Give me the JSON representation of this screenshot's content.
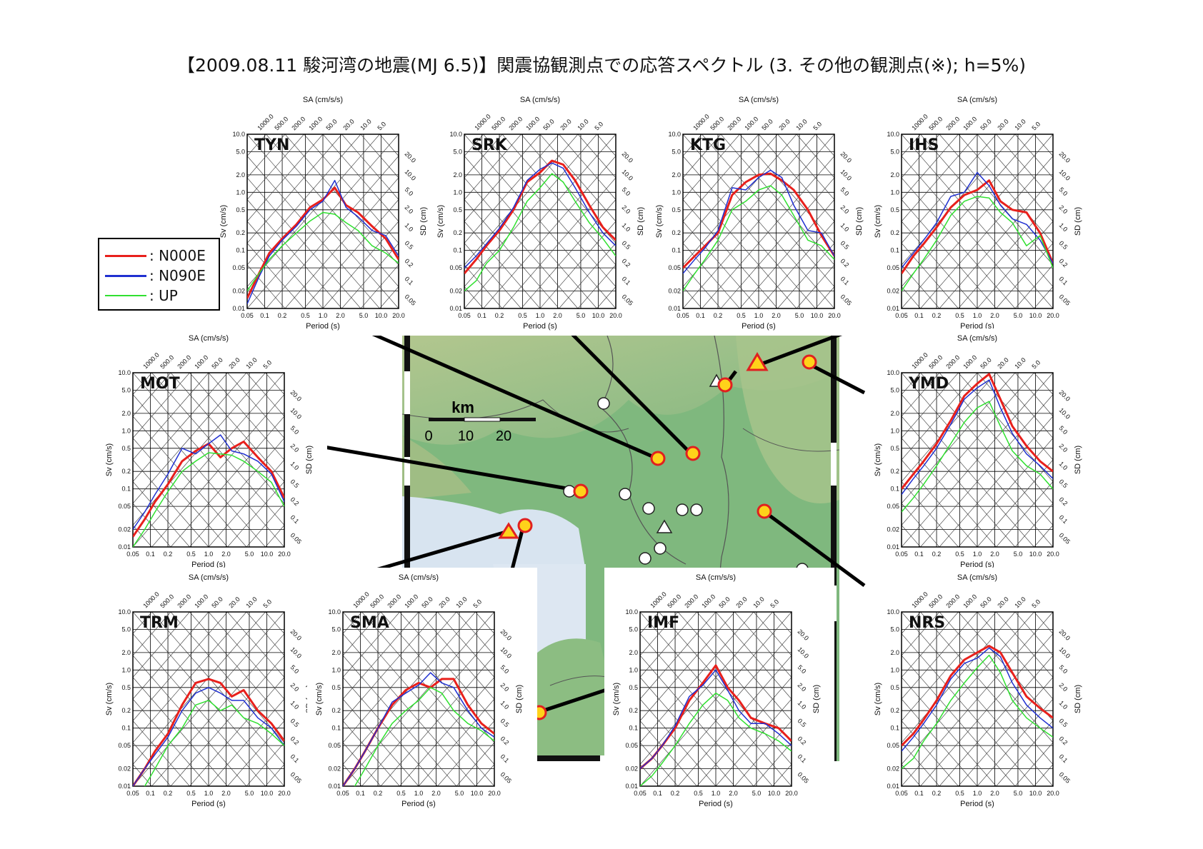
{
  "title": "【2009.08.11 駿河湾の地震(MJ 6.5)】関震協観測点での応答スペクトル (3. その他の観測点(※); h=5%)",
  "legend": [
    {
      "label": ": N000E",
      "color": "#e8201c"
    },
    {
      "label": ": N090E",
      "color": "#2030d0"
    },
    {
      "label": ": UP",
      "color": "#30e030"
    }
  ],
  "map": {
    "scale_unit": "km",
    "scale_ticks": [
      "0",
      "10",
      "20"
    ],
    "colors": {
      "land": "#7fb87e",
      "sea": "#d8e4f0",
      "marker_fill": "#ffd21a",
      "marker_edge": "#e02020"
    }
  },
  "axis_labels": {
    "sa": "SA (cm/s/s)",
    "sv": "Sv (cm/s)",
    "sd": "SD (cm)",
    "period": "Period (s)",
    "period_ticks": [
      "0.05",
      "0.1",
      "0.2",
      "0.5",
      "1.0",
      "2.0",
      "5.0",
      "10.0",
      "20.0"
    ],
    "sv_ticks": [
      "0.01",
      "0.02",
      "0.05",
      "0.1",
      "0.2",
      "0.5",
      "1.0",
      "2.0",
      "5.0",
      "10.0"
    ],
    "sa_ticks": [
      "1000.0",
      "500.0",
      "200.0",
      "100.0",
      "50.0",
      "20.0",
      "10.0",
      "5.0"
    ],
    "sd_ticks": [
      "20.0",
      "10.0",
      "5.0",
      "2.0",
      "1.0",
      "0.5",
      "0.2",
      "0.1",
      "0.05"
    ]
  },
  "chart_data": [
    {
      "type": "line",
      "station": "TYN",
      "x": [
        0.05,
        0.08,
        0.12,
        0.2,
        0.35,
        0.6,
        1.0,
        1.6,
        2.5,
        4,
        7,
        12,
        20
      ],
      "series": [
        {
          "name": "N000E",
          "values": [
            0.015,
            0.04,
            0.09,
            0.16,
            0.28,
            0.55,
            0.75,
            1.2,
            0.6,
            0.45,
            0.26,
            0.16,
            0.07
          ]
        },
        {
          "name": "N090E",
          "values": [
            0.012,
            0.035,
            0.08,
            0.15,
            0.26,
            0.5,
            0.7,
            1.6,
            0.55,
            0.38,
            0.22,
            0.18,
            0.08
          ]
        },
        {
          "name": "UP",
          "values": [
            0.02,
            0.04,
            0.07,
            0.12,
            0.2,
            0.32,
            0.45,
            0.42,
            0.3,
            0.22,
            0.12,
            0.09,
            0.06
          ]
        }
      ]
    },
    {
      "type": "line",
      "station": "SRK",
      "x": [
        0.05,
        0.08,
        0.12,
        0.2,
        0.35,
        0.6,
        1.0,
        1.6,
        2.5,
        4,
        7,
        12,
        20
      ],
      "series": [
        {
          "name": "N000E",
          "values": [
            0.04,
            0.07,
            0.12,
            0.22,
            0.5,
            1.5,
            2.2,
            3.5,
            3.0,
            1.6,
            0.6,
            0.25,
            0.15
          ]
        },
        {
          "name": "N090E",
          "values": [
            0.05,
            0.08,
            0.13,
            0.24,
            0.55,
            1.6,
            2.5,
            3.2,
            2.6,
            1.2,
            0.45,
            0.2,
            0.12
          ]
        },
        {
          "name": "UP",
          "values": [
            0.02,
            0.03,
            0.06,
            0.1,
            0.25,
            0.7,
            1.2,
            2.1,
            1.5,
            0.7,
            0.3,
            0.16,
            0.08
          ]
        }
      ]
    },
    {
      "type": "line",
      "station": "KTG",
      "x": [
        0.05,
        0.08,
        0.12,
        0.2,
        0.35,
        0.6,
        1.0,
        1.6,
        2.5,
        4,
        7,
        12,
        20
      ],
      "series": [
        {
          "name": "N000E",
          "values": [
            0.05,
            0.08,
            0.12,
            0.2,
            0.9,
            1.5,
            2.0,
            2.1,
            1.6,
            1.1,
            0.5,
            0.18,
            0.08
          ]
        },
        {
          "name": "N090E",
          "values": [
            0.04,
            0.07,
            0.11,
            0.22,
            1.2,
            1.1,
            1.8,
            2.4,
            1.8,
            0.6,
            0.22,
            0.2,
            0.08
          ]
        },
        {
          "name": "UP",
          "values": [
            0.02,
            0.04,
            0.07,
            0.15,
            0.5,
            0.7,
            1.1,
            1.3,
            0.9,
            0.4,
            0.15,
            0.12,
            0.07
          ]
        }
      ]
    },
    {
      "type": "line",
      "station": "IHS",
      "x": [
        0.05,
        0.08,
        0.12,
        0.2,
        0.35,
        0.6,
        1.0,
        1.6,
        2.5,
        4,
        7,
        12,
        20
      ],
      "series": [
        {
          "name": "N000E",
          "values": [
            0.04,
            0.08,
            0.13,
            0.25,
            0.55,
            0.9,
            1.1,
            1.6,
            0.7,
            0.5,
            0.45,
            0.2,
            0.06
          ]
        },
        {
          "name": "N090E",
          "values": [
            0.05,
            0.09,
            0.15,
            0.3,
            0.85,
            1.0,
            2.2,
            1.3,
            0.6,
            0.35,
            0.28,
            0.15,
            0.06
          ]
        },
        {
          "name": "UP",
          "values": [
            0.02,
            0.04,
            0.07,
            0.15,
            0.4,
            0.7,
            0.85,
            0.8,
            0.45,
            0.3,
            0.12,
            0.18,
            0.05
          ]
        }
      ]
    },
    {
      "type": "line",
      "station": "MOT",
      "x": [
        0.05,
        0.08,
        0.12,
        0.2,
        0.35,
        0.6,
        1.0,
        1.6,
        2.5,
        4,
        7,
        12,
        20
      ],
      "series": [
        {
          "name": "N000E",
          "values": [
            0.015,
            0.03,
            0.06,
            0.12,
            0.3,
            0.45,
            0.6,
            0.35,
            0.5,
            0.65,
            0.35,
            0.2,
            0.07
          ]
        },
        {
          "name": "N090E",
          "values": [
            0.02,
            0.04,
            0.08,
            0.18,
            0.5,
            0.4,
            0.6,
            0.85,
            0.45,
            0.4,
            0.3,
            0.18,
            0.06
          ]
        },
        {
          "name": "UP",
          "values": [
            0.01,
            0.02,
            0.04,
            0.09,
            0.2,
            0.3,
            0.42,
            0.4,
            0.38,
            0.3,
            0.2,
            0.13,
            0.05
          ]
        }
      ]
    },
    {
      "type": "line",
      "station": "YMD",
      "x": [
        0.05,
        0.08,
        0.12,
        0.2,
        0.35,
        0.6,
        1.0,
        1.6,
        2.5,
        4,
        7,
        12,
        20
      ],
      "series": [
        {
          "name": "N000E",
          "values": [
            0.1,
            0.18,
            0.3,
            0.6,
            1.5,
            4.0,
            6.5,
            9.5,
            3.5,
            1.2,
            0.55,
            0.3,
            0.2
          ]
        },
        {
          "name": "N090E",
          "values": [
            0.08,
            0.15,
            0.25,
            0.5,
            1.3,
            3.5,
            5.5,
            7.5,
            2.5,
            0.9,
            0.4,
            0.25,
            0.15
          ]
        },
        {
          "name": "UP",
          "values": [
            0.04,
            0.07,
            0.12,
            0.25,
            0.6,
            1.4,
            2.5,
            3.2,
            1.2,
            0.45,
            0.25,
            0.18,
            0.1
          ]
        }
      ]
    },
    {
      "type": "line",
      "station": "TRM",
      "x": [
        0.05,
        0.08,
        0.12,
        0.2,
        0.35,
        0.6,
        1.0,
        1.6,
        2.5,
        4,
        7,
        12,
        20
      ],
      "series": [
        {
          "name": "N000E",
          "values": [
            0.01,
            0.02,
            0.04,
            0.08,
            0.25,
            0.6,
            0.7,
            0.6,
            0.35,
            0.45,
            0.2,
            0.12,
            0.06
          ]
        },
        {
          "name": "N090E",
          "values": [
            0.01,
            0.02,
            0.035,
            0.07,
            0.2,
            0.4,
            0.5,
            0.4,
            0.3,
            0.3,
            0.15,
            0.1,
            0.05
          ]
        },
        {
          "name": "UP",
          "values": [
            0.005,
            0.01,
            0.02,
            0.05,
            0.1,
            0.25,
            0.3,
            0.2,
            0.25,
            0.15,
            0.12,
            0.08,
            0.05
          ]
        }
      ]
    },
    {
      "type": "line",
      "station": "SMA",
      "x": [
        0.05,
        0.08,
        0.12,
        0.2,
        0.35,
        0.6,
        1.0,
        1.6,
        2.5,
        4,
        7,
        12,
        20
      ],
      "series": [
        {
          "name": "N000E",
          "values": [
            0.01,
            0.02,
            0.04,
            0.1,
            0.25,
            0.45,
            0.6,
            0.5,
            0.7,
            0.7,
            0.25,
            0.12,
            0.08
          ]
        },
        {
          "name": "N090E",
          "values": [
            0.01,
            0.02,
            0.04,
            0.1,
            0.28,
            0.4,
            0.55,
            0.9,
            0.6,
            0.5,
            0.2,
            0.1,
            0.07
          ]
        },
        {
          "name": "UP",
          "values": [
            0.005,
            0.01,
            0.02,
            0.05,
            0.12,
            0.2,
            0.3,
            0.5,
            0.4,
            0.2,
            0.12,
            0.09,
            0.06
          ]
        }
      ]
    },
    {
      "type": "line",
      "station": "IMF",
      "x": [
        0.05,
        0.08,
        0.12,
        0.2,
        0.35,
        0.6,
        1.0,
        1.6,
        2.5,
        4,
        7,
        12,
        20
      ],
      "series": [
        {
          "name": "N000E",
          "values": [
            0.02,
            0.03,
            0.05,
            0.1,
            0.3,
            0.6,
            1.2,
            0.5,
            0.3,
            0.15,
            0.12,
            0.1,
            0.06
          ]
        },
        {
          "name": "N090E",
          "values": [
            0.02,
            0.03,
            0.05,
            0.11,
            0.35,
            0.55,
            1.0,
            0.45,
            0.2,
            0.12,
            0.12,
            0.08,
            0.05
          ]
        },
        {
          "name": "UP",
          "values": [
            0.01,
            0.015,
            0.025,
            0.05,
            0.12,
            0.25,
            0.4,
            0.3,
            0.15,
            0.1,
            0.08,
            0.06,
            0.04
          ]
        }
      ]
    },
    {
      "type": "line",
      "station": "NRS",
      "x": [
        0.05,
        0.08,
        0.12,
        0.2,
        0.35,
        0.6,
        1.0,
        1.6,
        2.5,
        4,
        7,
        12,
        20
      ],
      "series": [
        {
          "name": "N000E",
          "values": [
            0.05,
            0.08,
            0.14,
            0.3,
            0.8,
            1.5,
            2.0,
            2.6,
            2.0,
            0.9,
            0.35,
            0.22,
            0.15
          ]
        },
        {
          "name": "N090E",
          "values": [
            0.04,
            0.07,
            0.12,
            0.25,
            0.7,
            1.3,
            1.6,
            2.4,
            1.7,
            0.6,
            0.25,
            0.15,
            0.1
          ]
        },
        {
          "name": "UP",
          "values": [
            0.02,
            0.03,
            0.06,
            0.12,
            0.3,
            0.6,
            1.1,
            1.8,
            0.9,
            0.3,
            0.15,
            0.1,
            0.07
          ]
        }
      ]
    }
  ]
}
